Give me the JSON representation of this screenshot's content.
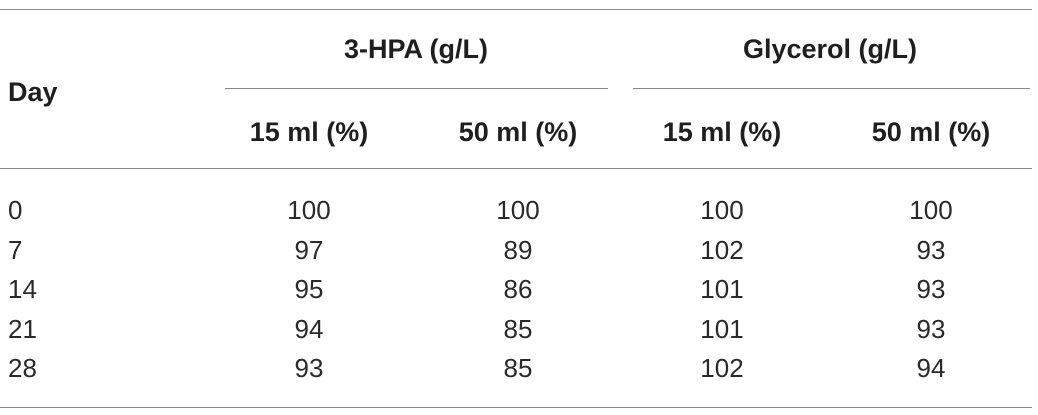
{
  "table": {
    "row_header": "Day",
    "groups": [
      {
        "label": "3-HPA (g/L)",
        "subcolumns": [
          "15 ml (%)",
          "50 ml (%)"
        ]
      },
      {
        "label": "Glycerol (g/L)",
        "subcolumns": [
          "15 ml (%)",
          "50 ml (%)"
        ]
      }
    ],
    "rows": [
      {
        "day": "0",
        "values": [
          "100",
          "100",
          "100",
          "100"
        ]
      },
      {
        "day": "7",
        "values": [
          "97",
          "89",
          "102",
          "93"
        ]
      },
      {
        "day": "14",
        "values": [
          "95",
          "86",
          "101",
          "93"
        ]
      },
      {
        "day": "21",
        "values": [
          "94",
          "85",
          "101",
          "93"
        ]
      },
      {
        "day": "28",
        "values": [
          "93",
          "85",
          "102",
          "94"
        ]
      }
    ]
  }
}
